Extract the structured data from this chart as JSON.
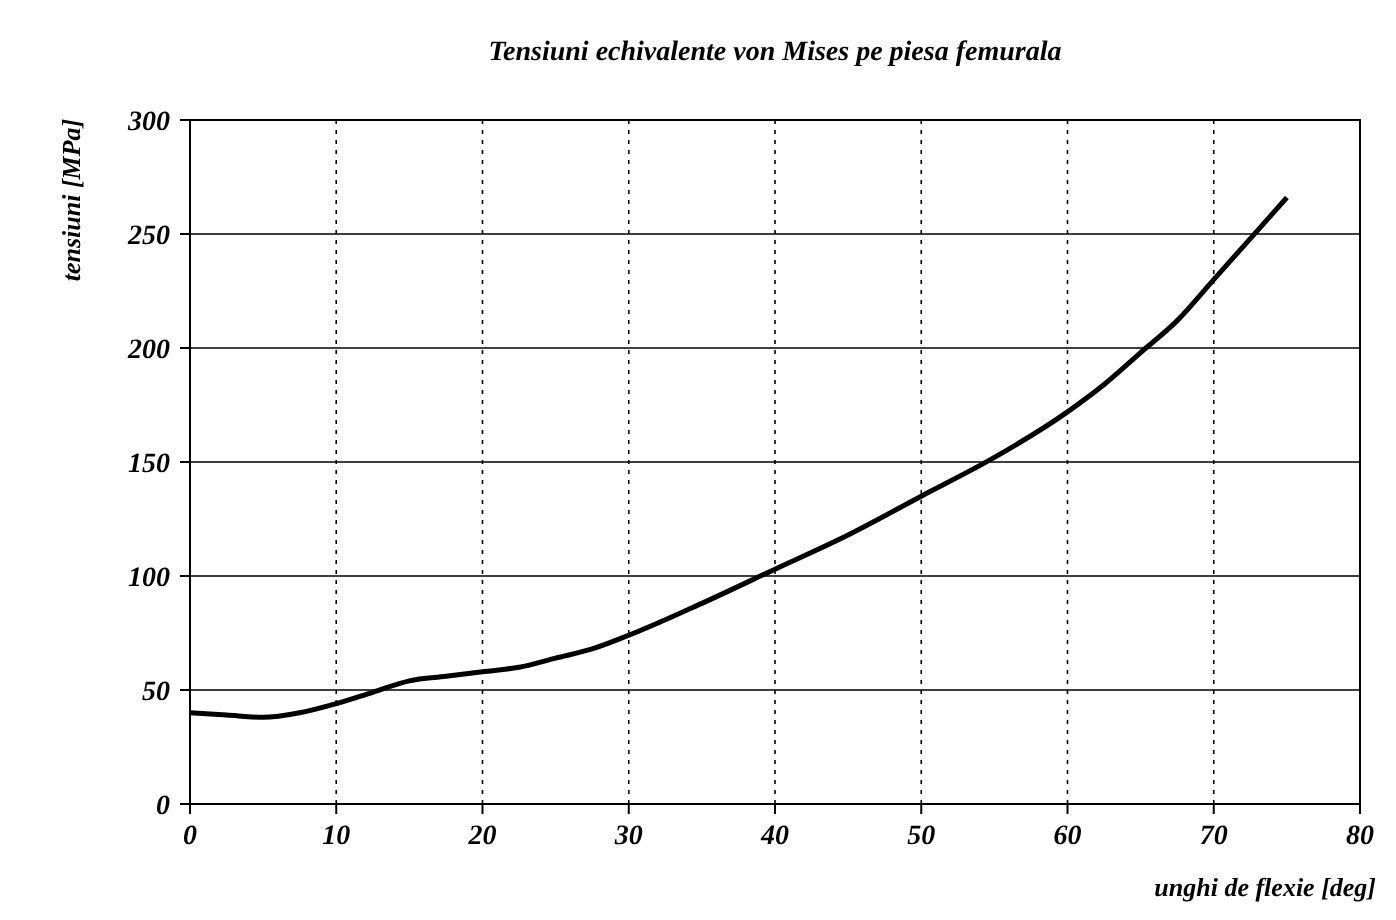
{
  "chart_data": {
    "type": "line",
    "title": "Tensiuni echivalente von Mises pe piesa femurala",
    "xlabel": "unghi de flexie [deg]",
    "ylabel": "tensiuni [MPa]",
    "x": [
      0,
      2.5,
      5,
      7.5,
      10,
      12.5,
      15,
      17.5,
      20,
      22.5,
      25,
      27.5,
      30,
      35,
      40,
      45,
      50,
      55,
      60,
      62.5,
      65,
      67.5,
      70,
      72.5,
      75
    ],
    "series": [
      {
        "color": "#000000",
        "values": [
          40,
          39,
          38,
          40,
          44,
          49,
          54,
          56,
          58,
          60,
          64,
          68,
          74,
          88,
          103,
          118,
          135,
          152,
          172,
          184,
          198,
          212,
          230,
          248,
          266
        ]
      }
    ],
    "xlim": [
      0,
      80
    ],
    "ylim": [
      0,
      300
    ],
    "xticks": [
      0,
      10,
      20,
      30,
      40,
      50,
      60,
      70,
      80
    ],
    "yticks": [
      0,
      50,
      100,
      150,
      200,
      250,
      300
    ],
    "grid": true,
    "line_style": "solid",
    "marker": "none"
  }
}
